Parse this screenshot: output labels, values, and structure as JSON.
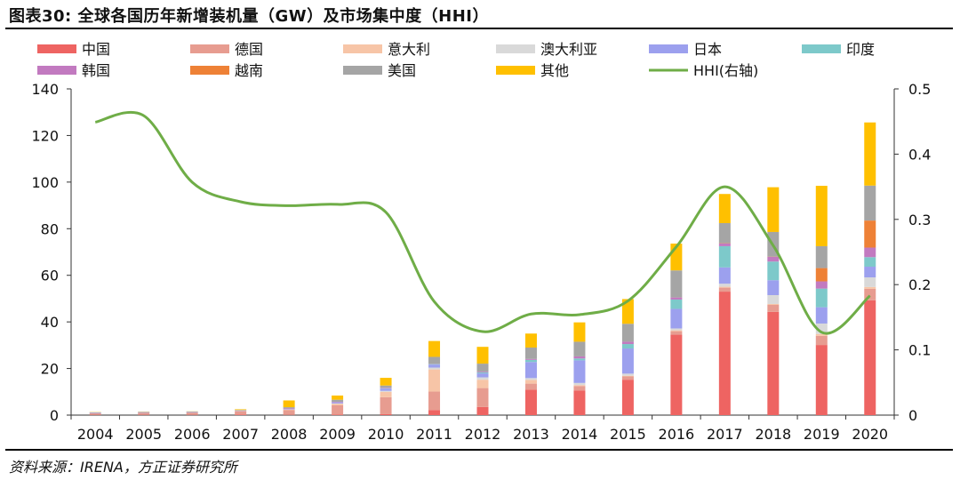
{
  "figure": {
    "title": "图表30:  全球各国历年新增装机量（GW）及市场集中度（HHI）",
    "source": "资料来源：IRENA，方正证券研究所"
  },
  "colors": {
    "中国": "#EE6462",
    "德国": "#E79C90",
    "意大利": "#F7C5A7",
    "澳大利亚": "#D9D9D9",
    "日本": "#9CA0EE",
    "印度": "#7DC9CA",
    "韩国": "#C27AC0",
    "越南": "#EE8136",
    "美国": "#A5A5A5",
    "其他": "#FFC000",
    "HHI": "#6FAD47"
  },
  "chart_data": {
    "type": "bar",
    "stacked": true,
    "categories": [
      "2004",
      "2005",
      "2006",
      "2007",
      "2008",
      "2009",
      "2010",
      "2011",
      "2012",
      "2013",
      "2014",
      "2015",
      "2016",
      "2017",
      "2018",
      "2019",
      "2020"
    ],
    "series": [
      {
        "name": "中国",
        "values": [
          0.1,
          0.1,
          0.1,
          0.2,
          0.1,
          0.2,
          0.4,
          2.2,
          3.5,
          10.9,
          10.6,
          15.2,
          34.5,
          53.0,
          44.3,
          30.1,
          49.3
        ]
      },
      {
        "name": "德国",
        "values": [
          0.7,
          0.9,
          1.0,
          1.5,
          2.0,
          4.0,
          7.3,
          7.9,
          8.1,
          2.6,
          1.9,
          1.4,
          1.5,
          1.7,
          3.0,
          3.9,
          4.9
        ]
      },
      {
        "name": "意大利",
        "values": [
          0.0,
          0.0,
          0.0,
          0.1,
          0.3,
          0.7,
          2.3,
          9.5,
          3.6,
          1.6,
          0.4,
          0.3,
          0.4,
          0.4,
          0.4,
          0.8,
          0.8
        ]
      },
      {
        "name": "澳大利亚",
        "values": [
          0.0,
          0.0,
          0.0,
          0.0,
          0.0,
          0.1,
          0.4,
          0.8,
          1.0,
          0.8,
          0.9,
          0.9,
          0.8,
          1.3,
          3.8,
          4.5,
          4.1
        ]
      },
      {
        "name": "日本",
        "values": [
          0.3,
          0.3,
          0.3,
          0.2,
          0.2,
          0.5,
          1.0,
          1.3,
          1.7,
          6.9,
          9.7,
          10.8,
          8.4,
          7.0,
          6.4,
          7.0,
          4.6
        ]
      },
      {
        "name": "印度",
        "values": [
          0.0,
          0.0,
          0.0,
          0.0,
          0.0,
          0.0,
          0.1,
          0.2,
          0.5,
          0.9,
          0.8,
          1.9,
          4.0,
          9.1,
          8.0,
          8.0,
          4.1
        ]
      },
      {
        "name": "韩国",
        "values": [
          0.0,
          0.0,
          0.0,
          0.0,
          0.3,
          0.2,
          0.2,
          0.1,
          0.3,
          0.4,
          0.9,
          1.0,
          0.9,
          1.2,
          2.0,
          3.1,
          4.1
        ]
      },
      {
        "name": "越南",
        "values": [
          0.0,
          0.0,
          0.0,
          0.0,
          0.0,
          0.0,
          0.0,
          0.0,
          0.0,
          0.0,
          0.0,
          0.0,
          0.0,
          0.1,
          0.1,
          5.7,
          11.6
        ]
      },
      {
        "name": "美国",
        "values": [
          0.1,
          0.1,
          0.1,
          0.2,
          0.5,
          0.9,
          1.0,
          3.0,
          3.4,
          4.9,
          6.3,
          7.7,
          11.6,
          8.6,
          10.6,
          9.4,
          15.0
        ]
      },
      {
        "name": "其他",
        "values": [
          0.1,
          0.1,
          0.1,
          0.3,
          2.9,
          1.8,
          3.3,
          6.8,
          7.2,
          6.0,
          8.3,
          10.6,
          11.5,
          12.5,
          19.2,
          25.9,
          27.1
        ]
      }
    ],
    "line": {
      "name": "HHI(右轴)",
      "values": [
        0.449,
        0.459,
        0.357,
        0.327,
        0.321,
        0.323,
        0.311,
        0.174,
        0.128,
        0.155,
        0.154,
        0.175,
        0.258,
        0.35,
        0.26,
        0.127,
        0.183
      ]
    },
    "ylim": [
      0,
      140
    ],
    "y_ticks": [
      0,
      20,
      40,
      60,
      80,
      100,
      120,
      140
    ],
    "y2lim": [
      0,
      0.5
    ],
    "y2_ticks": [
      "0",
      "0.1",
      "0.2",
      "0.3",
      "0.4",
      "0.5"
    ],
    "legend_order": [
      "中国",
      "德国",
      "意大利",
      "澳大利亚",
      "日本",
      "印度",
      "韩国",
      "越南",
      "美国",
      "其他",
      "HHI(右轴)"
    ],
    "legend_position": "top",
    "grid": false
  }
}
